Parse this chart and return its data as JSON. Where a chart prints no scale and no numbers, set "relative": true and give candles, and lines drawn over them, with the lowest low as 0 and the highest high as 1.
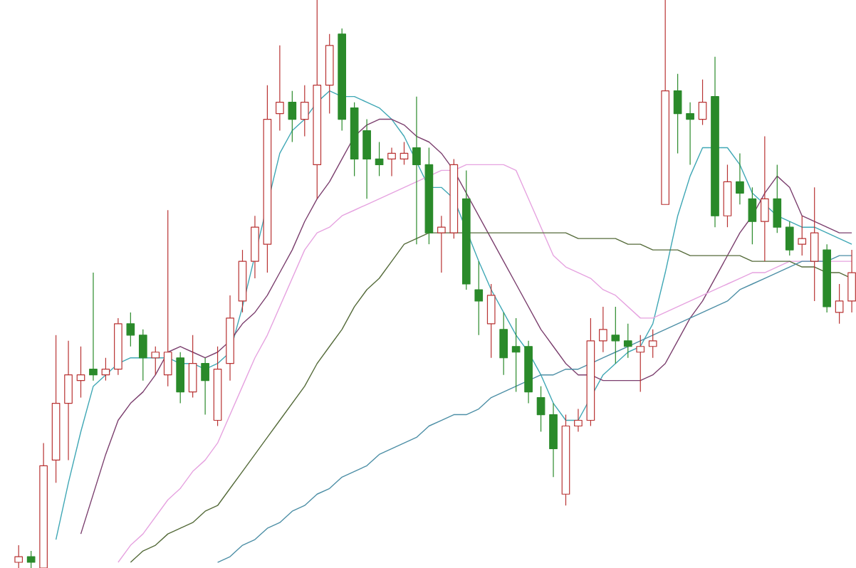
{
  "chart_data": {
    "type": "candlestick",
    "relative": true,
    "categories": [
      null,
      null,
      null,
      null,
      null,
      null,
      null,
      null,
      null,
      null,
      null,
      null,
      null,
      null,
      null,
      null,
      null,
      null,
      null,
      null,
      null,
      null,
      null,
      null,
      null,
      null,
      null,
      null,
      null,
      null,
      null,
      null,
      null,
      null,
      null,
      null,
      null,
      null,
      null,
      null,
      null,
      null,
      null,
      null,
      null,
      null,
      null,
      null,
      null,
      null,
      null,
      null,
      null,
      null,
      null,
      null,
      null,
      null,
      null,
      null,
      null,
      null,
      null,
      null,
      null,
      null,
      null,
      null
    ],
    "ohlc": [
      [
        0.01,
        0.04,
        0,
        0.02
      ],
      [
        0.02,
        0.03,
        0,
        0.01
      ],
      [
        0,
        0.22,
        0,
        0.18
      ],
      [
        0.19,
        0.41,
        0.15,
        0.29
      ],
      [
        0.29,
        0.4,
        0.19,
        0.34
      ],
      [
        0.33,
        0.39,
        0.3,
        0.34
      ],
      [
        0.35,
        0.52,
        0.33,
        0.34
      ],
      [
        0.34,
        0.37,
        0.33,
        0.35
      ],
      [
        0.35,
        0.44,
        0.34,
        0.43
      ],
      [
        0.43,
        0.45,
        0.39,
        0.41
      ],
      [
        0.41,
        0.42,
        0.33,
        0.37
      ],
      [
        0.37,
        0.39,
        0.34,
        0.38
      ],
      [
        0.34,
        0.63,
        0.32,
        0.38
      ],
      [
        0.37,
        0.38,
        0.29,
        0.31
      ],
      [
        0.31,
        0.41,
        0.3,
        0.36
      ],
      [
        0.36,
        0.37,
        0.27,
        0.33
      ],
      [
        0.26,
        0.39,
        0.25,
        0.35
      ],
      [
        0.36,
        0.48,
        0.33,
        0.44
      ],
      [
        0.47,
        0.56,
        0.45,
        0.54
      ],
      [
        0.54,
        0.62,
        0.51,
        0.6
      ],
      [
        0.57,
        0.85,
        0.52,
        0.79
      ],
      [
        0.8,
        0.92,
        0.77,
        0.82
      ],
      [
        0.82,
        0.84,
        0.75,
        0.79
      ],
      [
        0.79,
        0.85,
        0.76,
        0.82
      ],
      [
        0.71,
        1,
        0.65,
        0.85
      ],
      [
        0.85,
        0.94,
        0.8,
        0.92
      ],
      [
        0.94,
        0.95,
        0.77,
        0.79
      ],
      [
        0.81,
        0.82,
        0.69,
        0.72
      ],
      [
        0.77,
        0.79,
        0.65,
        0.72
      ],
      [
        0.72,
        0.75,
        0.69,
        0.71
      ],
      [
        0.72,
        0.74,
        0.69,
        0.73
      ],
      [
        0.72,
        0.75,
        0.71,
        0.73
      ],
      [
        0.74,
        0.83,
        0.57,
        0.71
      ],
      [
        0.71,
        0.74,
        0.57,
        0.59
      ],
      [
        0.59,
        0.62,
        0.52,
        0.6
      ],
      [
        0.59,
        0.72,
        0.58,
        0.71
      ],
      [
        0.65,
        0.7,
        0.49,
        0.5
      ],
      [
        0.49,
        0.54,
        0.41,
        0.47
      ],
      [
        0.43,
        0.5,
        0.37,
        0.48
      ],
      [
        0.42,
        0.45,
        0.34,
        0.37
      ],
      [
        0.39,
        0.44,
        0.31,
        0.38
      ],
      [
        0.39,
        0.4,
        0.29,
        0.31
      ],
      [
        0.3,
        0.32,
        0.24,
        0.27
      ],
      [
        0.27,
        0.29,
        0.16,
        0.21
      ],
      [
        0.13,
        0.27,
        0.11,
        0.25
      ],
      [
        0.25,
        0.28,
        0.24,
        0.26
      ],
      [
        0.26,
        0.44,
        0.25,
        0.4
      ],
      [
        0.4,
        0.46,
        0.38,
        0.42
      ],
      [
        0.41,
        0.46,
        0.36,
        0.4
      ],
      [
        0.4,
        0.43,
        0.37,
        0.39
      ],
      [
        0.38,
        0.41,
        0.31,
        0.39
      ],
      [
        0.39,
        0.42,
        0.37,
        0.4
      ],
      [
        0.64,
        1,
        0.64,
        0.84
      ],
      [
        0.84,
        0.87,
        0.73,
        0.8
      ],
      [
        0.8,
        0.82,
        0.71,
        0.79
      ],
      [
        0.79,
        0.86,
        0.78,
        0.82
      ],
      [
        0.83,
        0.9,
        0.6,
        0.62
      ],
      [
        0.62,
        0.71,
        0.6,
        0.68
      ],
      [
        0.68,
        0.73,
        0.64,
        0.66
      ],
      [
        0.65,
        0.67,
        0.57,
        0.61
      ],
      [
        0.61,
        0.76,
        0.54,
        0.65
      ],
      [
        0.65,
        0.71,
        0.59,
        0.6
      ],
      [
        0.6,
        0.61,
        0.55,
        0.56
      ],
      [
        0.57,
        0.62,
        0.55,
        0.58
      ],
      [
        0.54,
        0.67,
        0.47,
        0.59
      ],
      [
        0.56,
        0.57,
        0.45,
        0.46
      ],
      [
        0.45,
        0.5,
        0.43,
        0.47
      ],
      [
        0.47,
        0.56,
        0.45,
        0.52
      ]
    ],
    "colors": [
      "#b83232",
      "#2a8a2a",
      "#b83232",
      "#b83232",
      "#b83232",
      "#b83232",
      "#2a8a2a",
      "#b83232",
      "#b83232",
      "#2a8a2a",
      "#2a8a2a",
      "#b83232",
      "#b83232",
      "#2a8a2a",
      "#b83232",
      "#2a8a2a",
      "#b83232",
      "#b83232",
      "#b83232",
      "#b83232",
      "#b83232",
      "#b83232",
      "#2a8a2a",
      "#b83232",
      "#b83232",
      "#b83232",
      "#2a8a2a",
      "#2a8a2a",
      "#2a8a2a",
      "#2a8a2a",
      "#b83232",
      "#b83232",
      "#2a8a2a",
      "#2a8a2a",
      "#b83232",
      "#b83232",
      "#2a8a2a",
      "#2a8a2a",
      "#b83232",
      "#2a8a2a",
      "#2a8a2a",
      "#2a8a2a",
      "#2a8a2a",
      "#2a8a2a",
      "#b83232",
      "#b83232",
      "#b83232",
      "#b83232",
      "#2a8a2a",
      "#2a8a2a",
      "#b83232",
      "#b83232",
      "#b83232",
      "#2a8a2a",
      "#2a8a2a",
      "#b83232",
      "#2a8a2a",
      "#b83232",
      "#2a8a2a",
      "#2a8a2a",
      "#b83232",
      "#2a8a2a",
      "#2a8a2a",
      "#b83232",
      "#b83232",
      "#2a8a2a",
      "#b83232",
      "#b83232"
    ],
    "series": [
      {
        "type": "line",
        "color": "#3fa7b5",
        "values": [
          null,
          null,
          null,
          0.05,
          0.15,
          0.24,
          0.32,
          0.34,
          0.36,
          0.37,
          0.37,
          0.37,
          0.37,
          0.36,
          0.36,
          0.35,
          0.36,
          0.38,
          0.46,
          null,
          null,
          0.73,
          0.77,
          0.79,
          0.82,
          0.84,
          0.83,
          0.83,
          0.82,
          0.81,
          0.79,
          0.76,
          null,
          0.67,
          0.67,
          0.65,
          null,
          0.54,
          0.49,
          0.45,
          0.41,
          0.38,
          0.34,
          0.29,
          0.26,
          0.26,
          null,
          0.34,
          0.36,
          0.38,
          0.39,
          0.43,
          0.52,
          0.62,
          0.69,
          0.74,
          null,
          0.74,
          0.71,
          0.66,
          0.64,
          0.62,
          0.61,
          0.6,
          0.6,
          0.59,
          0.58,
          0.57
        ]
      },
      {
        "type": "line",
        "color": "#7b3f6e",
        "values": [
          null,
          null,
          null,
          null,
          null,
          0.06,
          0.13,
          0.2,
          0.26,
          0.29,
          0.31,
          0.34,
          0.38,
          0.39,
          0.38,
          0.37,
          0.38,
          0.4,
          0.43,
          0.45,
          0.48,
          0.52,
          0.56,
          0.61,
          0.65,
          0.68,
          0.72,
          0.76,
          0.78,
          0.79,
          0.79,
          0.78,
          0.76,
          0.75,
          0.73,
          0.7,
          0.66,
          0.62,
          0.58,
          0.54,
          0.5,
          0.46,
          0.42,
          0.39,
          0.36,
          0.34,
          0.34,
          0.33,
          0.33,
          0.33,
          0.33,
          0.34,
          0.36,
          0.4,
          0.44,
          0.47,
          0.51,
          0.55,
          0.59,
          0.62,
          0.66,
          0.69,
          0.67,
          0.62,
          0.61,
          0.6,
          0.59,
          0.59
        ]
      },
      {
        "type": "line",
        "color": "#e6a3e0",
        "values": [
          null,
          null,
          null,
          null,
          null,
          null,
          null,
          null,
          0.01,
          0.04,
          0.06,
          0.09,
          0.12,
          0.14,
          0.17,
          0.19,
          0.22,
          0.27,
          0.32,
          0.37,
          0.41,
          0.46,
          0.51,
          0.56,
          0.59,
          0.6,
          0.62,
          0.63,
          0.64,
          0.65,
          0.66,
          0.67,
          0.68,
          0.69,
          0.7,
          0.7,
          0.71,
          0.71,
          0.71,
          0.71,
          0.7,
          0.65,
          0.6,
          0.55,
          0.53,
          0.52,
          0.51,
          0.49,
          0.48,
          0.46,
          0.44,
          0.44,
          0.45,
          0.46,
          0.47,
          0.48,
          0.49,
          0.5,
          0.51,
          0.52,
          0.52,
          0.53,
          0.54,
          0.54,
          0.54,
          0.54,
          0.54,
          0.54
        ]
      },
      {
        "type": "line",
        "color": "#556b3a",
        "values": [
          null,
          null,
          null,
          null,
          null,
          null,
          null,
          null,
          null,
          0.01,
          0.03,
          0.04,
          0.06,
          0.07,
          0.08,
          0.1,
          0.11,
          0.14,
          0.17,
          0.2,
          0.23,
          0.26,
          0.29,
          0.32,
          0.36,
          0.39,
          0.42,
          0.46,
          0.49,
          0.51,
          0.54,
          0.57,
          0.58,
          0.59,
          0.59,
          0.59,
          0.59,
          0.59,
          0.59,
          0.59,
          0.59,
          0.59,
          0.59,
          0.59,
          0.59,
          0.58,
          0.58,
          0.58,
          0.58,
          0.57,
          0.57,
          0.56,
          0.56,
          0.56,
          0.55,
          0.55,
          0.55,
          0.55,
          0.55,
          0.54,
          0.54,
          0.54,
          0.54,
          0.53,
          0.53,
          0.52,
          0.52,
          0.51
        ]
      },
      {
        "type": "line",
        "color": "#4d8fa6",
        "values": [
          null,
          null,
          null,
          null,
          null,
          null,
          null,
          null,
          null,
          null,
          null,
          null,
          null,
          null,
          null,
          null,
          0.01,
          0.02,
          0.04,
          0.05,
          0.07,
          0.08,
          0.1,
          0.11,
          0.13,
          0.14,
          0.16,
          0.17,
          0.18,
          0.2,
          0.21,
          0.22,
          0.23,
          0.25,
          0.26,
          0.27,
          0.27,
          0.28,
          0.3,
          0.31,
          0.32,
          0.33,
          0.34,
          0.34,
          0.35,
          0.35,
          0.36,
          0.37,
          0.38,
          0.39,
          0.4,
          0.41,
          0.42,
          0.43,
          0.44,
          0.45,
          0.46,
          0.47,
          0.49,
          0.5,
          0.51,
          0.52,
          0.53,
          0.54,
          0.54,
          0.54,
          0.55,
          0.55
        ]
      }
    ]
  }
}
